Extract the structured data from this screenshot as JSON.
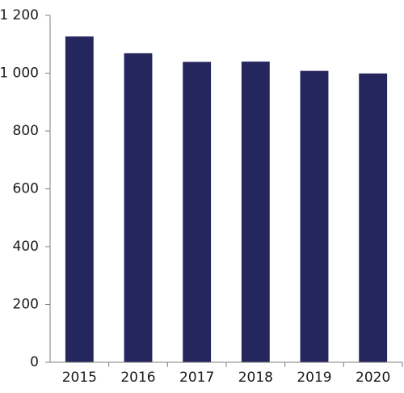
{
  "chart_data": {
    "type": "bar",
    "categories": [
      "2015",
      "2016",
      "2017",
      "2018",
      "2019",
      "2020"
    ],
    "values": [
      1127,
      1069,
      1039,
      1040,
      1008,
      999
    ],
    "ylim": [
      0,
      1200
    ],
    "yticks": [
      0,
      200,
      400,
      600,
      800,
      1000,
      1200
    ],
    "ytick_labels": [
      "0",
      "200",
      "400",
      "600",
      "800",
      "1 000",
      "1 200"
    ],
    "title": "",
    "xlabel": "",
    "ylabel": "",
    "bar_color": "#26265e",
    "axis_color": "#7f7f7f",
    "grid": false,
    "legend": "none"
  }
}
